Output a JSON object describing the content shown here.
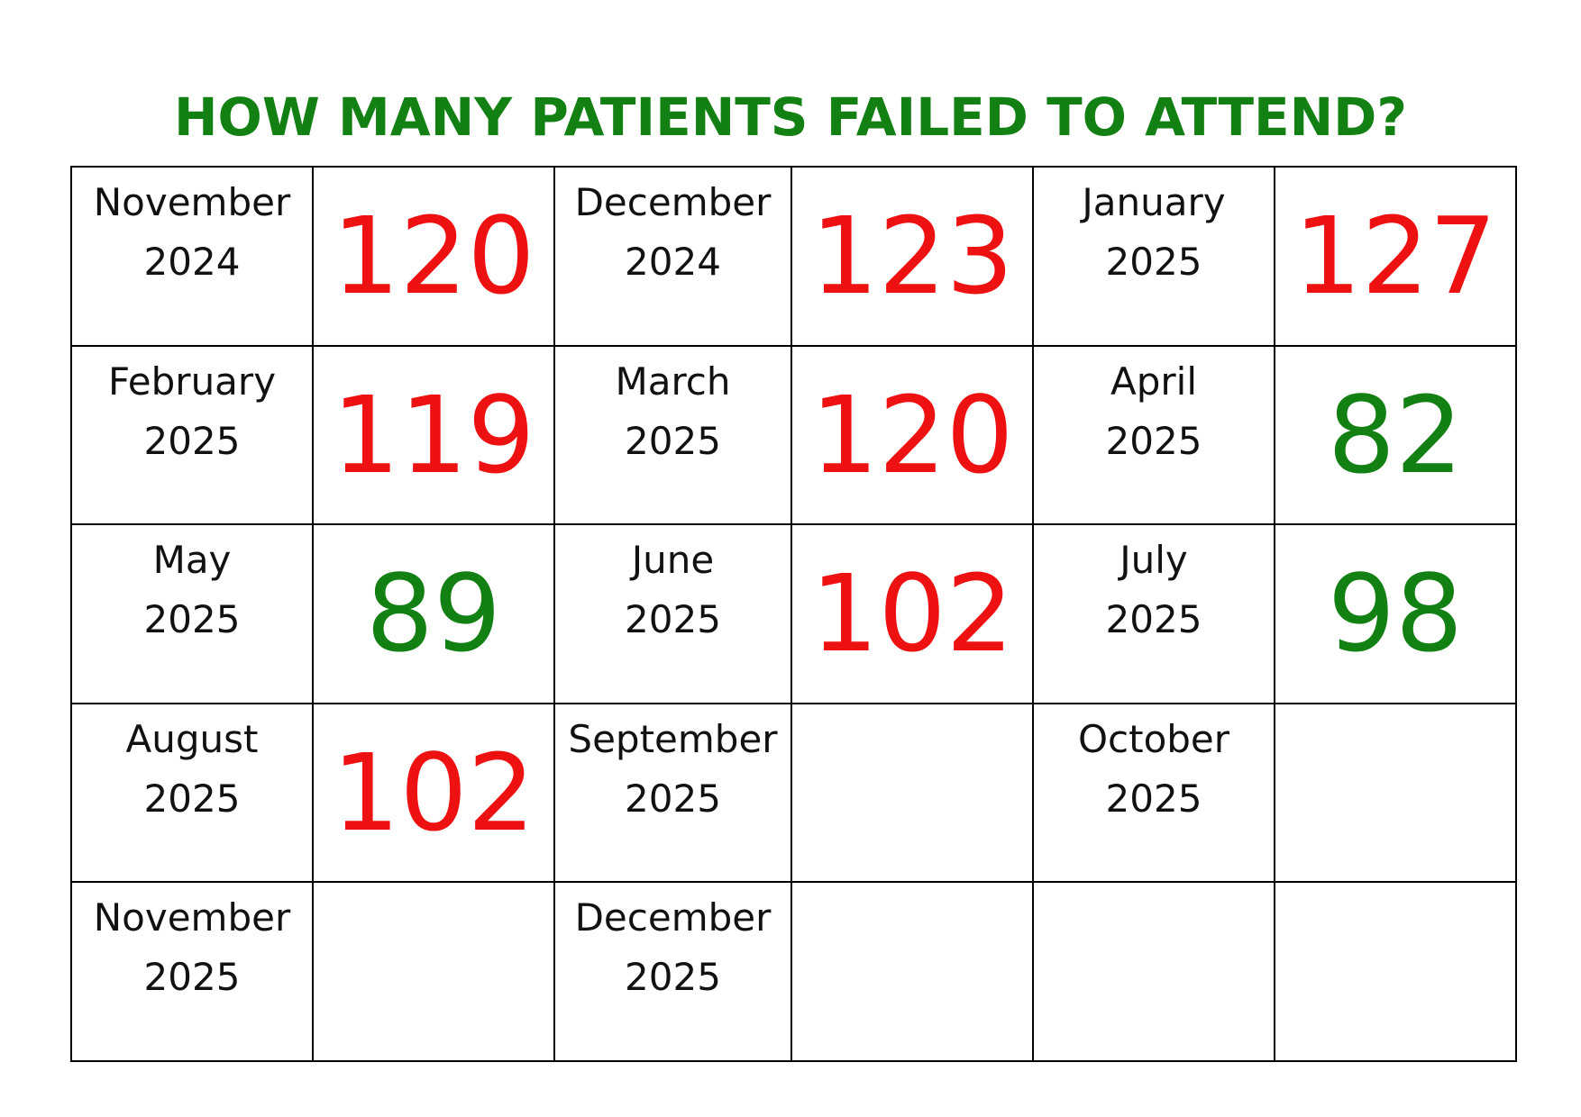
{
  "title": "HOW MANY PATIENTS FAILED TO ATTEND?",
  "colors": {
    "title": "#138013",
    "above_target": "#ee1111",
    "below_target": "#138013",
    "text": "#111111",
    "grid_line": "#000000"
  },
  "months": [
    {
      "month": "November",
      "year": "2024",
      "value": "120",
      "status": "red"
    },
    {
      "month": "December",
      "year": "2024",
      "value": "123",
      "status": "red"
    },
    {
      "month": "January",
      "year": "2025",
      "value": "127",
      "status": "red"
    },
    {
      "month": "February",
      "year": "2025",
      "value": "119",
      "status": "red"
    },
    {
      "month": "March",
      "year": "2025",
      "value": "120",
      "status": "red"
    },
    {
      "month": "April",
      "year": "2025",
      "value": "82",
      "status": "green"
    },
    {
      "month": "May",
      "year": "2025",
      "value": "89",
      "status": "green"
    },
    {
      "month": "June",
      "year": "2025",
      "value": "102",
      "status": "red"
    },
    {
      "month": "July",
      "year": "2025",
      "value": "98",
      "status": "green"
    },
    {
      "month": "August",
      "year": "2025",
      "value": "102",
      "status": "red"
    },
    {
      "month": "September",
      "year": "2025",
      "value": "",
      "status": ""
    },
    {
      "month": "October",
      "year": "2025",
      "value": "",
      "status": ""
    },
    {
      "month": "November",
      "year": "2025",
      "value": "",
      "status": ""
    },
    {
      "month": "December",
      "year": "2025",
      "value": "",
      "status": ""
    },
    {
      "month": "",
      "year": "",
      "value": "",
      "status": ""
    }
  ]
}
